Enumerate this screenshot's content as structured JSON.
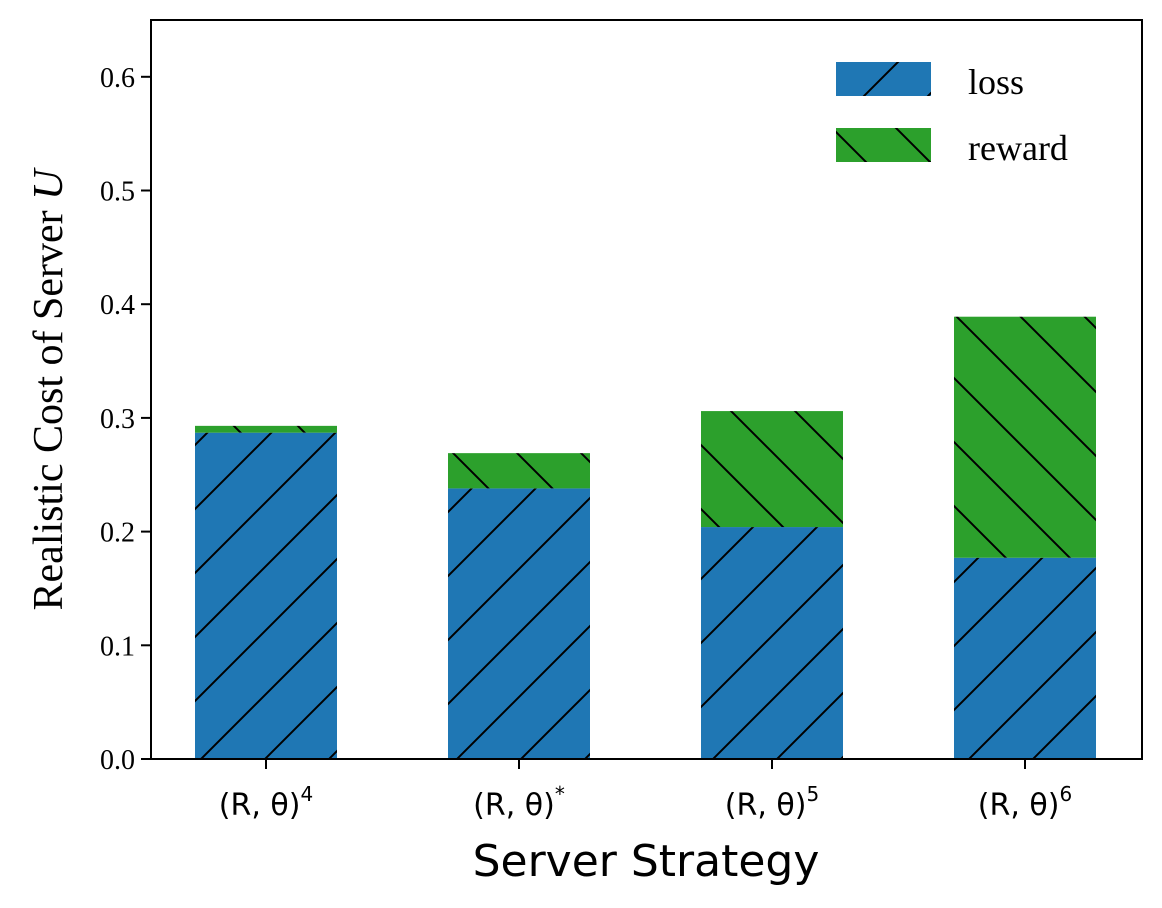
{
  "chart_data": {
    "type": "bar",
    "stacked": true,
    "categories": [
      {
        "base": "(R, θ)",
        "sup": "4"
      },
      {
        "base": "(R, θ)",
        "sup": "*"
      },
      {
        "base": "(R, θ)",
        "sup": "5"
      },
      {
        "base": "(R, θ)",
        "sup": "6"
      }
    ],
    "series": [
      {
        "name": "loss",
        "values": [
          0.287,
          0.238,
          0.204,
          0.177
        ],
        "color": "#1f77b4",
        "hatch": "/"
      },
      {
        "name": "reward",
        "values": [
          0.006,
          0.031,
          0.102,
          0.212
        ],
        "color": "#2ca02c",
        "hatch": "\\"
      }
    ],
    "xlabel": "Server Strategy",
    "ylabel": "Realistic Cost of Server",
    "ylabel_symbol": "U",
    "ylim": [
      0,
      0.65
    ],
    "yticks": [
      "0.0",
      "0.1",
      "0.2",
      "0.3",
      "0.4",
      "0.5",
      "0.6"
    ],
    "grid": false,
    "legend_position": "top-right"
  }
}
